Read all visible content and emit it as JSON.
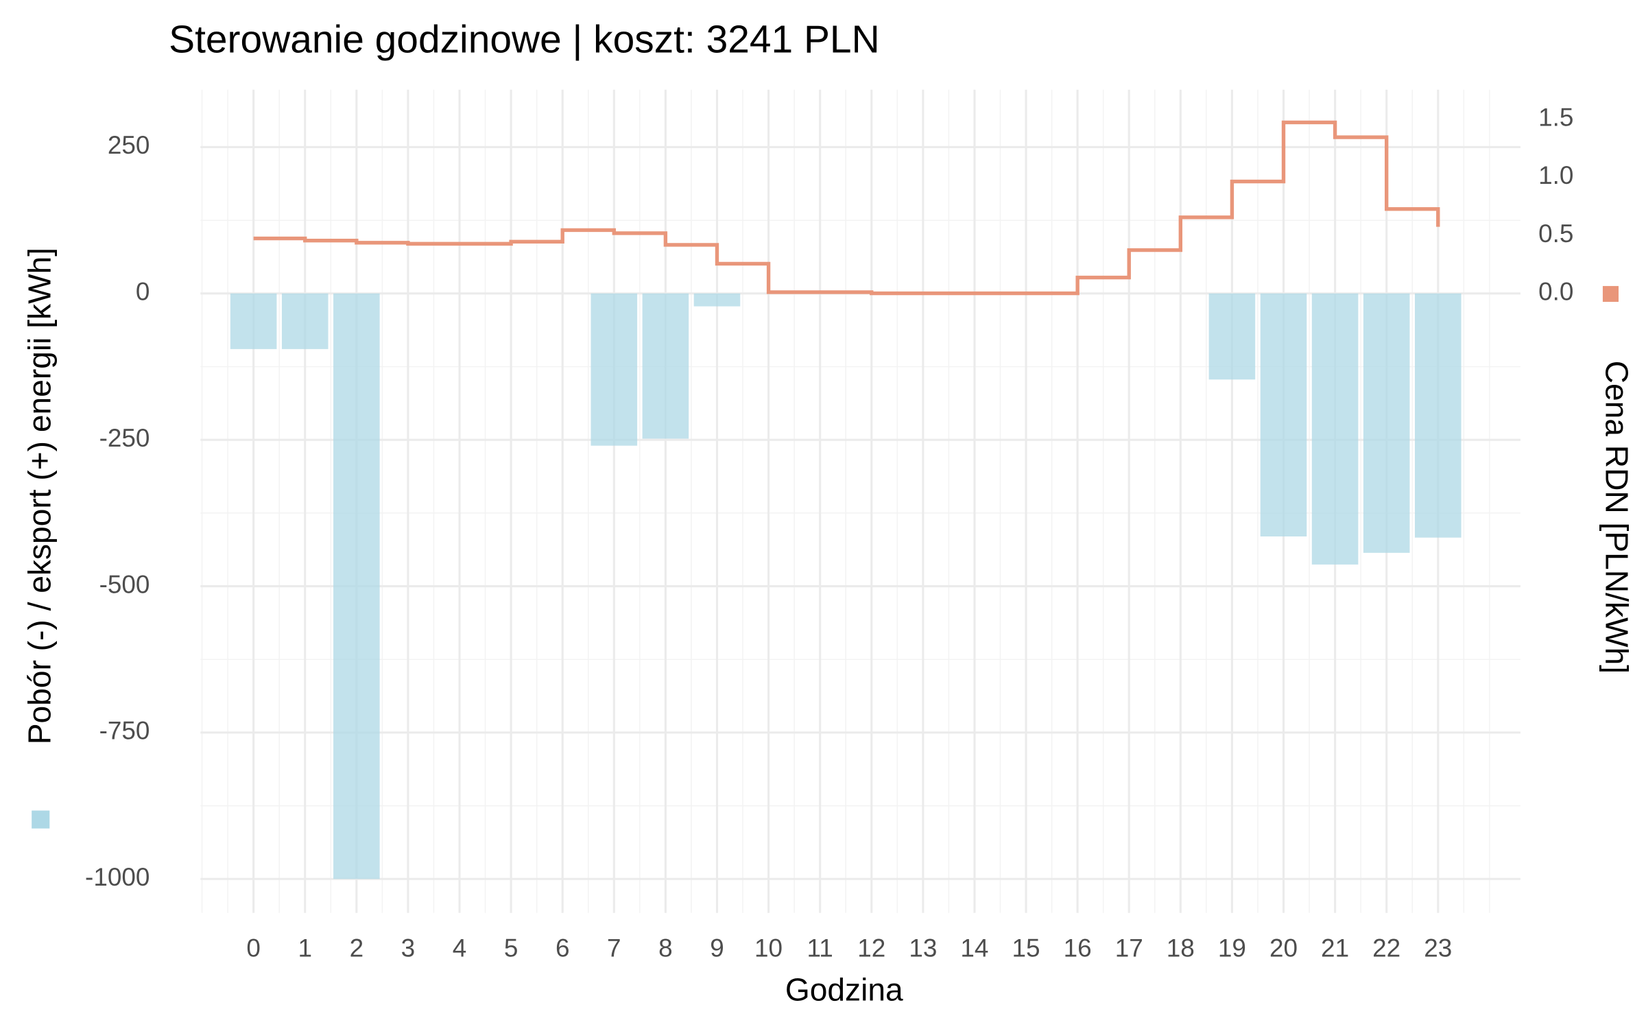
{
  "chart_data": {
    "type": "bar-step",
    "title": "Sterowanie godzinowe | koszt: 3241 PLN",
    "x_label": "Godzina",
    "x": [
      0,
      1,
      2,
      3,
      4,
      5,
      6,
      7,
      8,
      9,
      10,
      11,
      12,
      13,
      14,
      15,
      16,
      17,
      18,
      19,
      20,
      21,
      22,
      23
    ],
    "xlim": [
      -1.03,
      24.6
    ],
    "xticks": [
      0,
      1,
      2,
      3,
      4,
      5,
      6,
      7,
      8,
      9,
      10,
      11,
      12,
      13,
      14,
      15,
      16,
      17,
      18,
      19,
      20,
      21,
      22,
      23
    ],
    "ylim": [
      -1058,
      348
    ],
    "yticks": [
      -1000,
      -750,
      -500,
      -250,
      0,
      250
    ],
    "y2lim": [
      -5.34,
      1.755
    ],
    "y2ticks": [
      {
        "value": 0,
        "label": "0.0"
      },
      {
        "value": 0.5,
        "label": "0.5"
      },
      {
        "value": 1,
        "label": "1.0"
      },
      {
        "value": 1.5,
        "label": "1.5"
      }
    ],
    "grid": true,
    "series": [
      {
        "name": "Pobór (-) / eksport (+) energii [kWh]",
        "color": "#add8e6",
        "kind": "bar",
        "values": [
          -95,
          -95,
          -1000,
          0,
          0,
          0,
          0,
          -260,
          -248,
          -22,
          0,
          0,
          0,
          0,
          0,
          0,
          0,
          0,
          0,
          -147,
          -415,
          -463,
          -443,
          -417
        ]
      },
      {
        "name": "Cena RDN [PLN/kWh]",
        "color": "#e9967a",
        "kind": "step",
        "axis": "y2",
        "values": [
          0.473,
          0.455,
          0.436,
          0.427,
          0.427,
          0.445,
          0.545,
          0.518,
          0.418,
          0.255,
          0.01,
          0.01,
          0.0,
          0.0,
          0.0,
          0.0,
          0.136,
          0.373,
          0.655,
          0.964,
          1.473,
          1.345,
          0.727,
          0.573
        ]
      }
    ]
  }
}
